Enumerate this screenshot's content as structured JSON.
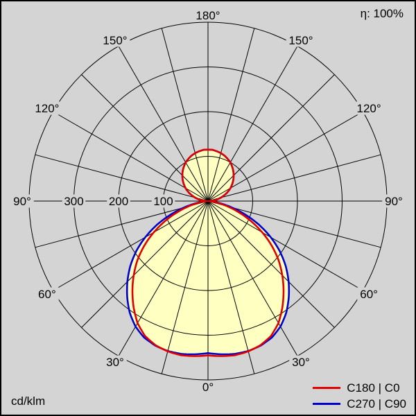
{
  "eta_label": "η: 100%",
  "unit_label": "cd/klm",
  "legend": {
    "items": [
      {
        "id": "c180-c0",
        "label": "C180 | C0",
        "color": "#e00000"
      },
      {
        "id": "c270-c90",
        "label": "C270 | C90",
        "color": "#0000cc"
      }
    ]
  },
  "colors": {
    "background": "#d4d4d4",
    "grid": "#000000",
    "text": "#000000",
    "curve_fill": "#ffffc2"
  },
  "chart_data": {
    "type": "line",
    "coordinate_system": "polar",
    "description": "Luminous intensity distribution curve (polar photometric diagram). Values in cd/klm. Gamma angle measured from nadir: 0° at bottom, 180° at top, mirrored left/right. Grid spokes every 15°, circles every 100 cd/klm.",
    "gamma_start_deg": 0,
    "gamma_step_deg": 5,
    "angle_labels": [
      "0°",
      "30°",
      "60°",
      "90°",
      "120°",
      "150°",
      "180°"
    ],
    "radial_circles": [
      100,
      200,
      300,
      400
    ],
    "radial_tick_labels": [
      "100",
      "200",
      "300"
    ],
    "radial_max": 400,
    "grid_spoke_step_deg": 15,
    "legend_position": "bottom-right",
    "series": [
      {
        "id": "c180-c0",
        "name": "C180 | C0",
        "color": "#e00000",
        "values": [
          345,
          348,
          350,
          348,
          343,
          333,
          315,
          290,
          263,
          235,
          206,
          174,
          140,
          106,
          73,
          44,
          20,
          7,
          2,
          10,
          20,
          30,
          39,
          49,
          58,
          66,
          74,
          81,
          88,
          94,
          100,
          104,
          108,
          111,
          113,
          115,
          115
        ]
      },
      {
        "id": "c270-c90",
        "name": "C270 | C90",
        "color": "#0000cc",
        "values": [
          340,
          344,
          347,
          347,
          344,
          337,
          324,
          305,
          281,
          255,
          227,
          196,
          162,
          126,
          89,
          54,
          25,
          9,
          2,
          10,
          20,
          30,
          39,
          49,
          58,
          66,
          74,
          81,
          88,
          94,
          100,
          104,
          108,
          111,
          113,
          115,
          115
        ]
      }
    ]
  }
}
